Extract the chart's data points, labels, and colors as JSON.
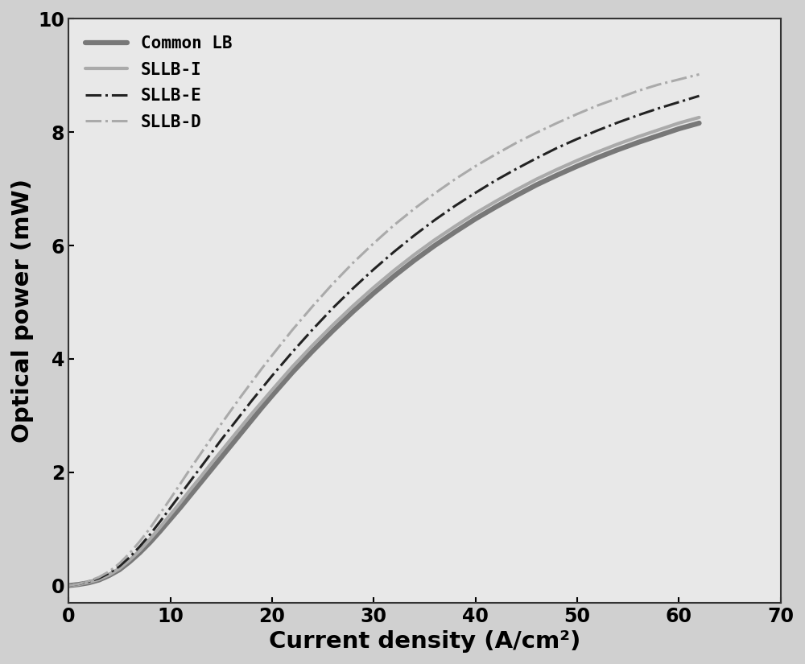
{
  "title": "",
  "xlabel": "Current density (A/cm²)",
  "ylabel": "Optical power (mW)",
  "xlim": [
    0,
    70
  ],
  "ylim": [
    -0.3,
    10
  ],
  "xticks": [
    0,
    10,
    20,
    30,
    40,
    50,
    60,
    70
  ],
  "yticks": [
    0,
    2,
    4,
    6,
    8,
    10
  ],
  "series": [
    {
      "label": "Common LB",
      "color": "#787878",
      "linewidth": 4.5,
      "linestyle": "solid",
      "x": [
        0,
        1,
        2,
        3,
        4,
        5,
        6,
        7,
        8,
        9,
        10,
        11,
        12,
        13,
        14,
        15,
        16,
        17,
        18,
        19,
        20,
        22,
        24,
        26,
        28,
        30,
        32,
        34,
        36,
        38,
        40,
        42,
        44,
        46,
        48,
        50,
        52,
        54,
        56,
        58,
        60,
        62
      ],
      "y": [
        0,
        0.02,
        0.05,
        0.1,
        0.18,
        0.28,
        0.42,
        0.58,
        0.76,
        0.96,
        1.17,
        1.38,
        1.6,
        1.82,
        2.04,
        2.26,
        2.48,
        2.7,
        2.92,
        3.14,
        3.35,
        3.76,
        4.14,
        4.5,
        4.84,
        5.16,
        5.46,
        5.74,
        6.0,
        6.24,
        6.47,
        6.68,
        6.88,
        7.07,
        7.24,
        7.4,
        7.55,
        7.69,
        7.82,
        7.94,
        8.06,
        8.16
      ]
    },
    {
      "label": "SLLB-I",
      "color": "#aaaaaa",
      "linewidth": 3.0,
      "linestyle": "solid",
      "x": [
        0,
        1,
        2,
        3,
        4,
        5,
        6,
        7,
        8,
        9,
        10,
        11,
        12,
        13,
        14,
        15,
        16,
        17,
        18,
        19,
        20,
        22,
        24,
        26,
        28,
        30,
        32,
        34,
        36,
        38,
        40,
        42,
        44,
        46,
        48,
        50,
        52,
        54,
        56,
        58,
        60,
        62
      ],
      "y": [
        0,
        0.02,
        0.06,
        0.11,
        0.19,
        0.3,
        0.45,
        0.62,
        0.82,
        1.03,
        1.25,
        1.47,
        1.7,
        1.92,
        2.15,
        2.37,
        2.59,
        2.81,
        3.03,
        3.24,
        3.45,
        3.86,
        4.24,
        4.6,
        4.94,
        5.26,
        5.56,
        5.84,
        6.1,
        6.34,
        6.57,
        6.78,
        6.98,
        7.17,
        7.34,
        7.5,
        7.65,
        7.79,
        7.92,
        8.04,
        8.16,
        8.26
      ]
    },
    {
      "label": "SLLB-E",
      "color": "#222222",
      "linewidth": 2.2,
      "linestyle": "dashdot",
      "x": [
        0,
        1,
        2,
        3,
        4,
        5,
        6,
        7,
        8,
        9,
        10,
        11,
        12,
        13,
        14,
        15,
        16,
        17,
        18,
        19,
        20,
        22,
        24,
        26,
        28,
        30,
        32,
        34,
        36,
        38,
        40,
        42,
        44,
        46,
        48,
        50,
        52,
        54,
        56,
        58,
        60,
        62
      ],
      "y": [
        0,
        0.03,
        0.07,
        0.13,
        0.22,
        0.34,
        0.5,
        0.69,
        0.9,
        1.13,
        1.37,
        1.61,
        1.85,
        2.09,
        2.33,
        2.57,
        2.8,
        3.03,
        3.26,
        3.48,
        3.7,
        4.12,
        4.52,
        4.9,
        5.25,
        5.58,
        5.89,
        6.18,
        6.45,
        6.7,
        6.93,
        7.15,
        7.35,
        7.54,
        7.72,
        7.88,
        8.03,
        8.17,
        8.3,
        8.42,
        8.53,
        8.64
      ]
    },
    {
      "label": "SLLB-D",
      "color": "#aaaaaa",
      "linewidth": 2.2,
      "linestyle": "dashdot",
      "x": [
        0,
        1,
        2,
        3,
        4,
        5,
        6,
        7,
        8,
        9,
        10,
        11,
        12,
        13,
        14,
        15,
        16,
        17,
        18,
        19,
        20,
        22,
        24,
        26,
        28,
        30,
        32,
        34,
        36,
        38,
        40,
        42,
        44,
        46,
        48,
        50,
        52,
        54,
        56,
        58,
        60,
        62
      ],
      "y": [
        0,
        0.03,
        0.08,
        0.15,
        0.25,
        0.39,
        0.57,
        0.78,
        1.01,
        1.27,
        1.53,
        1.8,
        2.07,
        2.33,
        2.59,
        2.85,
        3.1,
        3.35,
        3.59,
        3.83,
        4.06,
        4.51,
        4.93,
        5.33,
        5.7,
        6.04,
        6.36,
        6.65,
        6.92,
        7.17,
        7.4,
        7.61,
        7.81,
        7.99,
        8.16,
        8.32,
        8.47,
        8.6,
        8.73,
        8.84,
        8.93,
        9.02
      ]
    }
  ],
  "legend_fontsize": 15,
  "axis_label_fontsize": 21,
  "tick_fontsize": 17,
  "background_color": "#e8e8e8",
  "figure_facecolor": "#d0d0d0"
}
